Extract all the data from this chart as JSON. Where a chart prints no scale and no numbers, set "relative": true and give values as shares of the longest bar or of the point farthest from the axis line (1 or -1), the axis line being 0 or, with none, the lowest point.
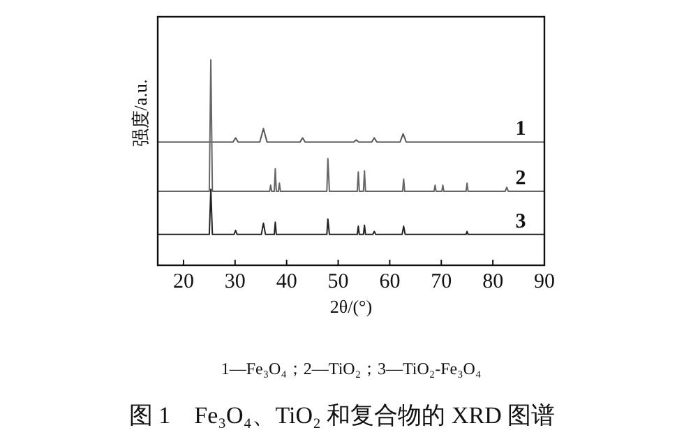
{
  "chart_data": {
    "type": "line",
    "title": "图 1　Fe₃O₄、TiO₂ 和复合物的 XRD 图谱",
    "xlabel": "2θ/(°)",
    "ylabel": "强度/a.u.",
    "annotations": [
      "1—Fe₃O₄；2—TiO₂；3—TiO₂-Fe₃O₄"
    ],
    "relative": true,
    "xlim": [
      15,
      90
    ],
    "xticks": [
      20,
      30,
      40,
      50,
      60,
      70,
      80,
      90
    ],
    "legend": false,
    "grid": false,
    "marker": "none",
    "line_style": "solid",
    "series": [
      {
        "name": "1",
        "color": "#555555",
        "x": [
          15,
          29.6,
          30.1,
          30.6,
          34.8,
          35.5,
          36.2,
          42.6,
          43.1,
          43.6,
          53.0,
          53.5,
          54.0,
          56.5,
          57.0,
          57.5,
          62.0,
          62.6,
          63.2,
          90
        ],
        "values": [
          0.6,
          0.6,
          0.62,
          0.6,
          0.6,
          0.665,
          0.6,
          0.6,
          0.62,
          0.6,
          0.6,
          0.61,
          0.6,
          0.6,
          0.62,
          0.6,
          0.6,
          0.64,
          0.6,
          0.6
        ]
      },
      {
        "name": "2",
        "color": "#666666",
        "x": [
          15,
          25.0,
          25.3,
          25.6,
          36.7,
          36.9,
          37.1,
          37.6,
          37.8,
          38.0,
          38.4,
          38.6,
          38.8,
          47.8,
          48.0,
          48.3,
          53.7,
          53.9,
          54.1,
          54.9,
          55.1,
          55.3,
          62.5,
          62.7,
          62.9,
          68.6,
          68.8,
          69.0,
          70.1,
          70.3,
          70.5,
          74.8,
          75.0,
          75.2,
          82.4,
          82.7,
          83.0,
          90
        ],
        "values": [
          0.36,
          0.36,
          1.0,
          0.36,
          0.36,
          0.39,
          0.36,
          0.36,
          0.47,
          0.36,
          0.36,
          0.4,
          0.36,
          0.36,
          0.52,
          0.36,
          0.36,
          0.455,
          0.36,
          0.36,
          0.46,
          0.36,
          0.36,
          0.42,
          0.36,
          0.36,
          0.39,
          0.36,
          0.36,
          0.39,
          0.36,
          0.36,
          0.4,
          0.36,
          0.36,
          0.38,
          0.36,
          0.36
        ]
      },
      {
        "name": "3",
        "color": "#222222",
        "x": [
          15,
          25.0,
          25.3,
          25.6,
          29.8,
          30.1,
          30.4,
          35.1,
          35.5,
          35.9,
          37.6,
          37.8,
          38.0,
          47.8,
          48.0,
          48.3,
          53.7,
          53.9,
          54.1,
          54.9,
          55.1,
          55.3,
          56.7,
          57.0,
          57.3,
          62.4,
          62.7,
          63.0,
          74.8,
          75.0,
          75.2,
          90
        ],
        "values": [
          0.15,
          0.15,
          0.37,
          0.15,
          0.15,
          0.17,
          0.15,
          0.15,
          0.205,
          0.15,
          0.15,
          0.21,
          0.15,
          0.15,
          0.225,
          0.15,
          0.15,
          0.19,
          0.15,
          0.15,
          0.195,
          0.15,
          0.15,
          0.165,
          0.15,
          0.15,
          0.19,
          0.15,
          0.15,
          0.165,
          0.15,
          0.15
        ]
      }
    ]
  }
}
